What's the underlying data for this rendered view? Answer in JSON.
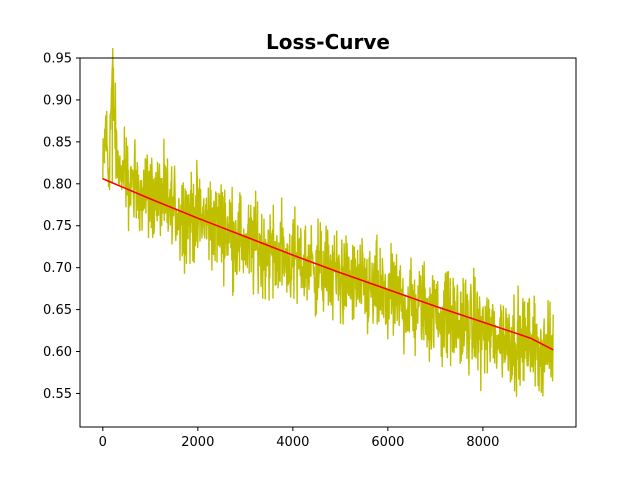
{
  "chart_data": {
    "type": "line",
    "title": "Loss-Curve",
    "xlabel": "",
    "ylabel": "",
    "xlim": [
      -480,
      9960
    ],
    "ylim": [
      0.51,
      0.95
    ],
    "x_ticks": [
      0,
      2000,
      4000,
      6000,
      8000
    ],
    "x_tick_labels": [
      "0",
      "2000",
      "4000",
      "6000",
      "8000"
    ],
    "y_ticks": [
      0.55,
      0.6,
      0.65,
      0.7,
      0.75,
      0.8,
      0.85,
      0.9,
      0.95
    ],
    "y_tick_labels": [
      "0.55",
      "0.60",
      "0.65",
      "0.70",
      "0.75",
      "0.80",
      "0.85",
      "0.90",
      "0.95"
    ],
    "grid": false,
    "legend": "none",
    "series": [
      {
        "kind": "noisy-loss",
        "color": "#bfbf00",
        "x_range": [
          0,
          9480
        ],
        "points": [
          [
            0,
            0.8
          ],
          [
            60,
            0.87
          ],
          [
            120,
            0.81
          ],
          [
            200,
            0.93
          ],
          [
            300,
            0.82
          ],
          [
            500,
            0.8
          ],
          [
            1000,
            0.79
          ],
          [
            1500,
            0.77
          ],
          [
            2000,
            0.76
          ],
          [
            2500,
            0.75
          ],
          [
            3000,
            0.73
          ],
          [
            3500,
            0.72
          ],
          [
            4000,
            0.71
          ],
          [
            4500,
            0.7
          ],
          [
            5000,
            0.69
          ],
          [
            5500,
            0.675
          ],
          [
            6000,
            0.665
          ],
          [
            6500,
            0.655
          ],
          [
            7000,
            0.645
          ],
          [
            7500,
            0.635
          ],
          [
            8000,
            0.625
          ],
          [
            8500,
            0.615
          ],
          [
            9000,
            0.61
          ],
          [
            9480,
            0.6
          ]
        ],
        "noise_amplitude": 0.045
      },
      {
        "kind": "trend",
        "color": "#ff0000",
        "x": [
          0,
          1000,
          2000,
          3000,
          4000,
          5000,
          6000,
          7000,
          8000,
          9000,
          9480
        ],
        "values": [
          0.806,
          0.782,
          0.759,
          0.737,
          0.715,
          0.694,
          0.674,
          0.654,
          0.635,
          0.616,
          0.602
        ]
      }
    ]
  }
}
